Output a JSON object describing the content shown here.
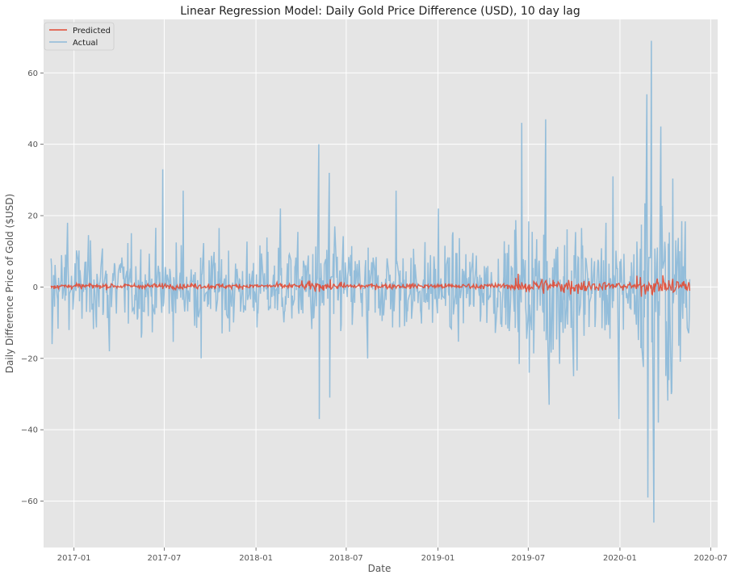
{
  "chart_data": {
    "type": "line",
    "title": "Linear Regression Model: Daily Gold Price Difference (USD), 10 day lag",
    "xlabel": "Date",
    "ylabel": "Daily Difference Price of Gold ($USD)",
    "xlim": [
      "2016-11-01",
      "2020-07-15"
    ],
    "ylim": [
      -73,
      75
    ],
    "grid": true,
    "legend_position": "top-left",
    "x_ticks": [
      "2017-01",
      "2017-07",
      "2018-01",
      "2018-07",
      "2019-01",
      "2019-07",
      "2020-01",
      "2020-07"
    ],
    "y_ticks": [
      -60,
      -40,
      -20,
      0,
      20,
      40,
      60
    ],
    "x_start": "2016-11-16",
    "x_end": "2020-05-20",
    "series": [
      {
        "name": "Predicted",
        "color": "#E24A33",
        "description": "near-zero predictions, typically within about ±1 USD, wider near 2018-05, 2019-07 and 2020-03",
        "amplitude_min": -4,
        "amplitude_max": 4
      },
      {
        "name": "Actual",
        "color": "#8EBAD9",
        "description": "daily price differences, mostly within ±20 USD with spikes up to about 69 and down to about -66 in March 2020",
        "notable_points": [
          {
            "x": "2016-11-20",
            "y": -16
          },
          {
            "x": "2016-12-20",
            "y": 18
          },
          {
            "x": "2017-03-15",
            "y": -18
          },
          {
            "x": "2017-06-30",
            "y": 33
          },
          {
            "x": "2017-08-10",
            "y": 27
          },
          {
            "x": "2017-09-15",
            "y": -20
          },
          {
            "x": "2018-02-20",
            "y": 22
          },
          {
            "x": "2018-05-08",
            "y": 40
          },
          {
            "x": "2018-05-10",
            "y": -37
          },
          {
            "x": "2018-05-29",
            "y": 32
          },
          {
            "x": "2018-05-31",
            "y": -31
          },
          {
            "x": "2018-08-15",
            "y": -20
          },
          {
            "x": "2018-10-11",
            "y": 27
          },
          {
            "x": "2019-01-04",
            "y": 22
          },
          {
            "x": "2019-06-20",
            "y": 46
          },
          {
            "x": "2019-07-05",
            "y": -24
          },
          {
            "x": "2019-08-05",
            "y": 47
          },
          {
            "x": "2019-08-13",
            "y": -33
          },
          {
            "x": "2019-10-01",
            "y": -25
          },
          {
            "x": "2019-12-20",
            "y": 31
          },
          {
            "x": "2019-12-31",
            "y": -37
          },
          {
            "x": "2020-02-24",
            "y": 54
          },
          {
            "x": "2020-02-28",
            "y": -59
          },
          {
            "x": "2020-03-06",
            "y": 69
          },
          {
            "x": "2020-03-09",
            "y": -66
          },
          {
            "x": "2020-03-20",
            "y": -38
          },
          {
            "x": "2020-03-24",
            "y": 45
          },
          {
            "x": "2020-04-14",
            "y": -30
          }
        ]
      }
    ]
  }
}
